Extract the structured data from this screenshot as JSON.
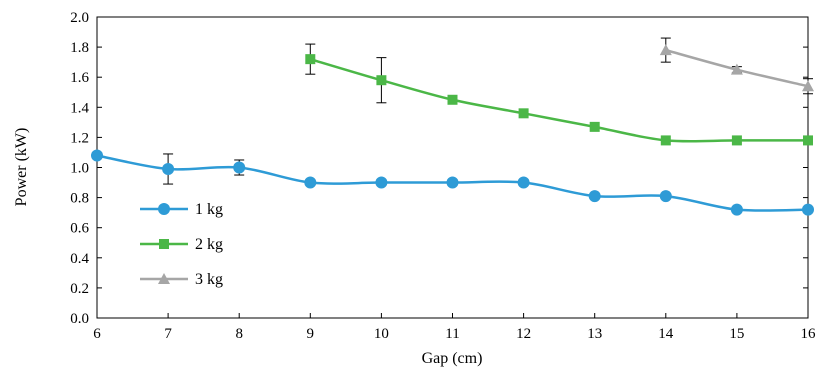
{
  "chart_data": {
    "type": "line",
    "title": "",
    "xlabel": "Gap (cm)",
    "ylabel": "Power (kW)",
    "xlim": [
      6,
      16
    ],
    "ylim": [
      0,
      2
    ],
    "x_ticks": [
      "6",
      "7",
      "8",
      "9",
      "10",
      "11",
      "12",
      "13",
      "14",
      "15",
      "16"
    ],
    "y_ticks": [
      "0.0",
      "0.2",
      "0.4",
      "0.6",
      "0.8",
      "1.0",
      "1.2",
      "1.4",
      "1.6",
      "1.8",
      "2.0"
    ],
    "grid": false,
    "legend_position": "left",
    "series": [
      {
        "name": "1 kg",
        "color": "#2e9bd6",
        "marker": "circle",
        "x": [
          6,
          7,
          8,
          9,
          10,
          11,
          12,
          13,
          14,
          15,
          16
        ],
        "y": [
          1.08,
          0.99,
          1.0,
          0.9,
          0.9,
          0.9,
          0.9,
          0.81,
          0.81,
          0.72,
          0.72
        ],
        "error": [
          null,
          0.1,
          0.05,
          null,
          null,
          null,
          null,
          null,
          null,
          null,
          null
        ]
      },
      {
        "name": "2 kg",
        "color": "#4bb747",
        "marker": "square",
        "x": [
          9,
          10,
          11,
          12,
          13,
          14,
          15,
          16
        ],
        "y": [
          1.72,
          1.58,
          1.45,
          1.36,
          1.27,
          1.18,
          1.18,
          1.18
        ],
        "error": [
          0.1,
          0.15,
          null,
          null,
          null,
          null,
          null,
          null
        ]
      },
      {
        "name": "3 kg",
        "color": "#a6a6a6",
        "marker": "triangle",
        "x": [
          14,
          15,
          16
        ],
        "y": [
          1.78,
          1.65,
          1.54
        ],
        "error": [
          0.08,
          0.02,
          0.05
        ]
      }
    ]
  }
}
